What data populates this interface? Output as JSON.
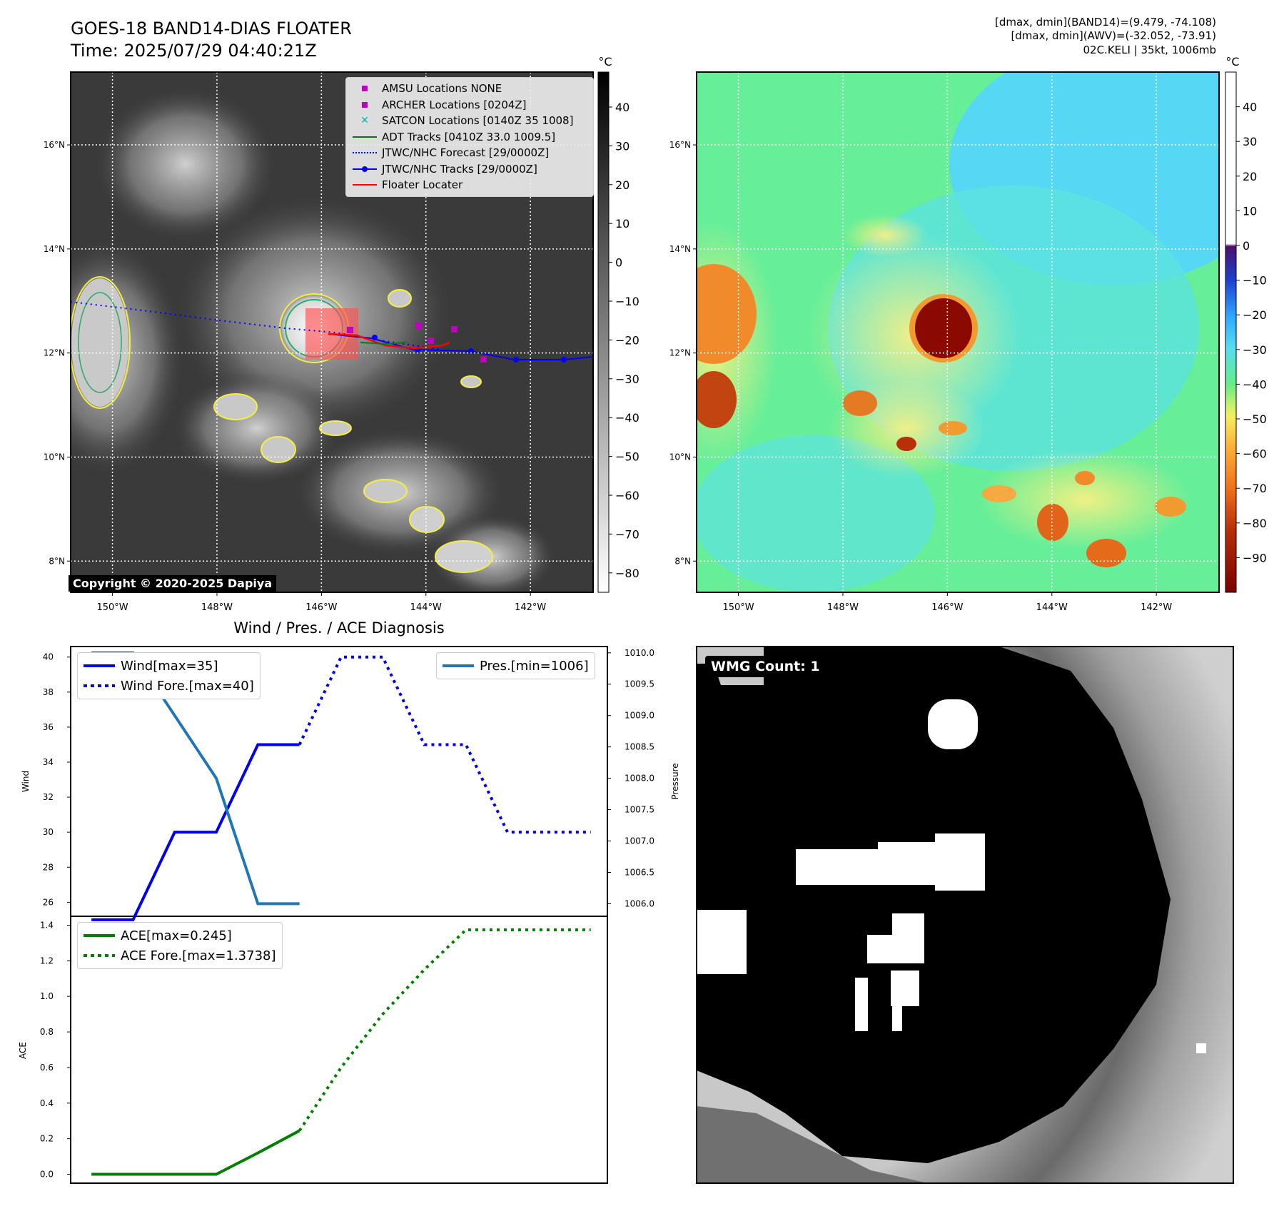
{
  "header": {
    "title_line1": "GOES-18 BAND14-DIAS FLOATER",
    "title_line2": "Time: 2025/07/29 04:40:21Z",
    "meta_lines": [
      "[dmax, dmin](BAND14)=(9.479, -74.108)",
      "[dmax, dmin](AWV)=(-32.052, -73.91)",
      "02C.KELI | 35kt, 1006mb"
    ]
  },
  "map_axes": {
    "lat_ticks": [
      "16°N",
      "14°N",
      "12°N",
      "10°N",
      "8°N"
    ],
    "lat_values": [
      16,
      14,
      12,
      10,
      8
    ],
    "lon_ticks": [
      "150°W",
      "148°W",
      "146°W",
      "144°W",
      "142°W"
    ],
    "lon_values": [
      -150,
      -148,
      -146,
      -144,
      -142
    ],
    "lon_range": [
      -150.8,
      -140.8
    ],
    "lat_range": [
      7.4,
      17.4
    ]
  },
  "colorbar_left": {
    "unit": "°C",
    "ticks": [
      "40",
      "30",
      "20",
      "10",
      "0",
      "−10",
      "−20",
      "−30",
      "−40",
      "−50",
      "−60",
      "−70",
      "−80"
    ],
    "range": [
      -85,
      49
    ]
  },
  "colorbar_right": {
    "unit": "°C",
    "ticks": [
      "40",
      "30",
      "20",
      "10",
      "0",
      "−10",
      "−20",
      "−30",
      "−40",
      "−50",
      "−60",
      "−70",
      "−80",
      "−90"
    ],
    "range": [
      -100,
      50
    ]
  },
  "legend_map": [
    {
      "label": "AMSU Locations NONE",
      "symbol": "square",
      "color": "#c000c0"
    },
    {
      "label": "ARCHER Locations [0204Z]",
      "symbol": "square",
      "color": "#c000c0"
    },
    {
      "label": "SATCON Locations [0140Z 35 1008]",
      "symbol": "x",
      "color": "#00b3b3"
    },
    {
      "label": "ADT Tracks [0410Z 33.0 1009.5]",
      "symbol": "line",
      "color": "#008000"
    },
    {
      "label": "JTWC/NHC Forecast [29/0000Z]",
      "symbol": "dotted",
      "color": "#0000ff"
    },
    {
      "label": "JTWC/NHC Tracks [29/0000Z]",
      "symbol": "line-dot",
      "color": "#0000ff"
    },
    {
      "label": "Floater Locater",
      "symbol": "line",
      "color": "#ff0000"
    }
  ],
  "copyright": "Copyright © 2020-2025 Dapiya",
  "wmg_label": "WMG Count: 1",
  "chart_data": [
    {
      "type": "line",
      "title": "Wind / Pres. / ACE Diagnosis",
      "ylabel": "Wind",
      "ylabel_right": "Pressure",
      "ylim": [
        25.2,
        40.6
      ],
      "ylim_right": [
        1005.8,
        1010.1
      ],
      "yticks": [
        "40",
        "38",
        "36",
        "34",
        "32",
        "30",
        "28",
        "26"
      ],
      "yticks_right": [
        "1010.0",
        "1009.5",
        "1009.0",
        "1008.5",
        "1008.0",
        "1007.5",
        "1007.0",
        "1006.5",
        "1006.0"
      ],
      "x": [
        0,
        1,
        2,
        3,
        4,
        5,
        6,
        7,
        8,
        9,
        10
      ],
      "series": [
        {
          "name": "Wind[max=35]",
          "axis": "left",
          "style": "solid",
          "color": "#0000ee",
          "x": [
            0,
            1,
            2,
            3,
            4,
            5
          ],
          "values": [
            25,
            25,
            30,
            30,
            35,
            35
          ]
        },
        {
          "name": "Wind Fore.[max=40]",
          "axis": "left",
          "style": "dotted",
          "color": "#0000ee",
          "x": [
            5,
            6,
            7,
            8,
            9,
            10,
            11,
            12
          ],
          "values": [
            35,
            40,
            40,
            35,
            35,
            30,
            30,
            30
          ]
        },
        {
          "name": "Pres.[min=1006]",
          "axis": "right",
          "style": "solid",
          "color": "#1f77b4",
          "x": [
            0,
            1,
            2,
            3,
            4,
            5
          ],
          "values": [
            1010,
            1010,
            1009,
            1008,
            1006,
            1006
          ]
        }
      ]
    },
    {
      "type": "line",
      "ylabel": "ACE",
      "ylim": [
        -0.05,
        1.45
      ],
      "yticks": [
        "1.4",
        "1.2",
        "1.0",
        "0.8",
        "0.6",
        "0.4",
        "0.2",
        "0.0"
      ],
      "series": [
        {
          "name": "ACE[max=0.245]",
          "style": "solid",
          "color": "#008000",
          "x": [
            0,
            1,
            2,
            3,
            4,
            5
          ],
          "values": [
            0,
            0,
            0,
            0,
            0.12,
            0.245
          ]
        },
        {
          "name": "ACE Fore.[max=1.3738]",
          "style": "dotted",
          "color": "#008000",
          "x": [
            5,
            6,
            7,
            8,
            9,
            10,
            11,
            12
          ],
          "values": [
            0.245,
            0.6,
            0.9,
            1.15,
            1.3738,
            1.3738,
            1.3738,
            1.3738
          ]
        }
      ]
    }
  ]
}
